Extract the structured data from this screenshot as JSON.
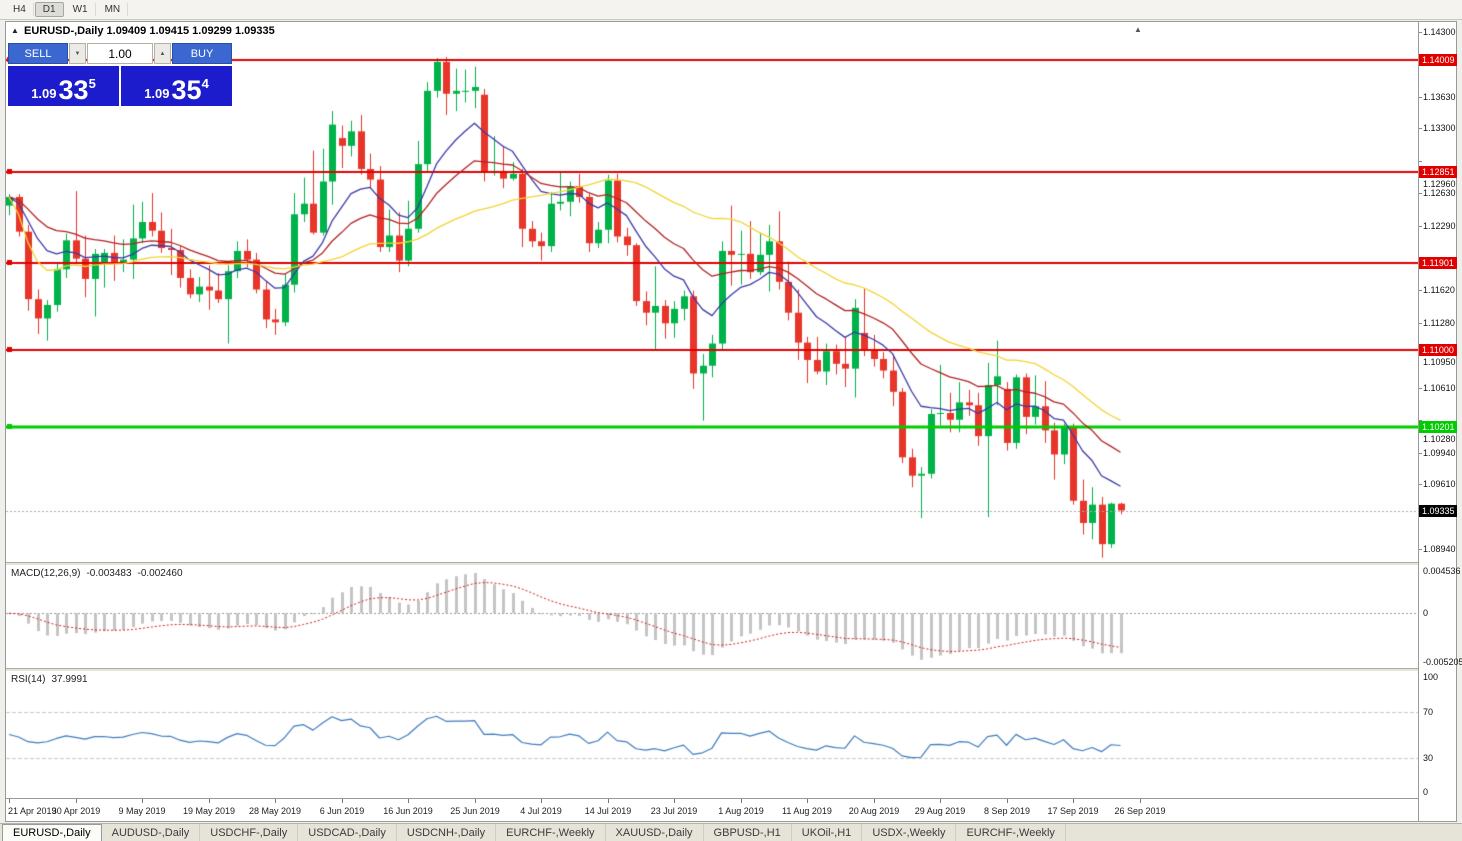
{
  "toolbar": {
    "timeframes": [
      {
        "label": "H4",
        "active": false
      },
      {
        "label": "D1",
        "active": true
      },
      {
        "label": "W1",
        "active": false
      },
      {
        "label": "MN",
        "active": false
      }
    ]
  },
  "chart": {
    "title": "EURUSD-,Daily 1.09409 1.09415 1.09299 1.09335",
    "panel_toggle_icon": "▲",
    "shift_marker_icon": "▲"
  },
  "trade_panel": {
    "sell_label": "SELL",
    "buy_label": "BUY",
    "volume": "1.00",
    "decrease_icon": "▼",
    "increase_icon": "▲",
    "sell_price": {
      "prefix": "1.09",
      "big": "33",
      "sup": "5"
    },
    "buy_price": {
      "prefix": "1.09",
      "big": "35",
      "sup": "4"
    }
  },
  "price_axis": {
    "labels": [
      {
        "text": "1.14300",
        "price": 1.143
      },
      {
        "text": "1.13630",
        "price": 1.1363
      },
      {
        "text": "1.13300",
        "price": 1.133
      },
      {
        "text": "1.12960",
        "price": 1.1296
      },
      {
        "text": "1.12630",
        "price": 1.1263
      },
      {
        "text": "1.12290",
        "price": 1.1229
      },
      {
        "text": "1.11620",
        "price": 1.1162
      },
      {
        "text": "1.11280",
        "price": 1.1128
      },
      {
        "text": "1.10950",
        "price": 1.1095
      },
      {
        "text": "1.10610",
        "price": 1.1061
      },
      {
        "text": "1.10280",
        "price": 1.1028
      },
      {
        "text": "1.09940",
        "price": 1.0994
      },
      {
        "text": "1.09610",
        "price": 1.0961
      },
      {
        "text": "1.08940",
        "price": 1.0894
      }
    ],
    "badges": [
      {
        "text": "1.14009",
        "price": 1.14009,
        "bg": "#e00000"
      },
      {
        "text": "1.12851",
        "price": 1.12851,
        "bg": "#e00000"
      },
      {
        "text": "1.11901",
        "price": 1.11901,
        "bg": "#e00000"
      },
      {
        "text": "1.11000",
        "price": 1.11,
        "bg": "#e00000"
      },
      {
        "text": "1.10201",
        "price": 1.10201,
        "bg": "#00cc00"
      },
      {
        "text": "1.09335",
        "price": 1.09335,
        "bg": "#000000"
      }
    ]
  },
  "indicators": {
    "macd": {
      "name": "MACD(12,26,9)",
      "value1": "-0.003483",
      "value2": "-0.002460",
      "axis": [
        {
          "text": "0.004536",
          "value": 0.004536
        },
        {
          "text": "0",
          "value": 0
        },
        {
          "text": "-0.005205",
          "value": -0.005205
        }
      ],
      "range": {
        "max": 0.004536,
        "min": -0.005205
      },
      "fast": 12,
      "slow": 26,
      "signal": 9,
      "histogram_color": "#c4c4c4",
      "signal_color": "#d02020",
      "zero_line_color": "#999999"
    },
    "rsi": {
      "name": "RSI(14)",
      "value": "37.9991",
      "period": 14,
      "axis": [
        {
          "text": "100",
          "value": 100
        },
        {
          "text": "70",
          "value": 70
        },
        {
          "text": "30",
          "value": 30
        },
        {
          "text": "0",
          "value": 0
        }
      ],
      "levels": [
        70,
        30
      ],
      "range": {
        "max": 100,
        "min": 0
      },
      "line_color": "#3e7bbe",
      "level_color": "#c8c8c8"
    }
  },
  "tabs": {
    "active_index": 0,
    "items": [
      "EURUSD-,Daily",
      "AUDUSD-,Daily",
      "USDCHF-,Daily",
      "USDCAD-,Daily",
      "USDCNH-,Daily",
      "EURCHF-,Weekly",
      "XAUUSD-,Daily",
      "GBPUSD-,H1",
      "UKOil-,H1",
      "USDX-,Weekly",
      "EURCHF-,Weekly"
    ]
  },
  "chart_data": {
    "type": "candlestick",
    "symbol": "EURUSD-",
    "timeframe": "Daily",
    "current": {
      "open": "1.09409",
      "high": "1.09415",
      "low": "1.09299",
      "close": "1.09335"
    },
    "y_range": {
      "max": 1.143,
      "min": 1.0894
    },
    "bid": 1.09335,
    "colors": {
      "bull": "#00b24a",
      "bear": "#e8352a",
      "bid_line": "#aaaaaa"
    },
    "h_lines": [
      {
        "price": 1.14009,
        "color": "#e00000",
        "width": 2
      },
      {
        "price": 1.12851,
        "color": "#e00000",
        "width": 2
      },
      {
        "price": 1.11901,
        "color": "#e00000",
        "width": 2
      },
      {
        "price": 1.11,
        "color": "#e00000",
        "width": 2
      },
      {
        "price": 1.10201,
        "color": "#00cc00",
        "width": 3
      }
    ],
    "overlays": [
      {
        "name": "ma-fast",
        "type": "ema",
        "period": 10,
        "color": "#3a3aa8"
      },
      {
        "name": "ma-mid",
        "type": "ema",
        "period": 21,
        "color": "#b22222"
      },
      {
        "name": "ma-slow",
        "type": "sma",
        "period": 34,
        "color": "#f2d435"
      }
    ],
    "x_labels": [
      "21 Apr 2019",
      "30 Apr 2019",
      "9 May 2019",
      "19 May 2019",
      "28 May 2019",
      "6 Jun 2019",
      "16 Jun 2019",
      "25 Jun 2019",
      "4 Jul 2019",
      "14 Jul 2019",
      "23 Jul 2019",
      "1 Aug 2019",
      "11 Aug 2019",
      "20 Aug 2019",
      "29 Aug 2019",
      "8 Sep 2019",
      "17 Sep 2019",
      "26 Sep 2019"
    ],
    "ohlc": [
      [
        1.125,
        1.1262,
        1.124,
        1.1259
      ],
      [
        1.1259,
        1.1262,
        1.1218,
        1.1223
      ],
      [
        1.1223,
        1.123,
        1.1141,
        1.1153
      ],
      [
        1.1153,
        1.1163,
        1.1117,
        1.1133
      ],
      [
        1.1133,
        1.1152,
        1.111,
        1.1147
      ],
      [
        1.1147,
        1.119,
        1.114,
        1.1184
      ],
      [
        1.1184,
        1.1221,
        1.1175,
        1.1214
      ],
      [
        1.1214,
        1.1265,
        1.119,
        1.1195
      ],
      [
        1.1195,
        1.1219,
        1.1155,
        1.1174
      ],
      [
        1.1174,
        1.1205,
        1.1135,
        1.12
      ],
      [
        1.119,
        1.1205,
        1.1165,
        1.1201
      ],
      [
        1.1201,
        1.1219,
        1.1172,
        1.119
      ],
      [
        1.119,
        1.1215,
        1.1181,
        1.1194
      ],
      [
        1.1194,
        1.1251,
        1.1174,
        1.1216
      ],
      [
        1.1216,
        1.1254,
        1.1211,
        1.1233
      ],
      [
        1.1233,
        1.1263,
        1.1218,
        1.1224
      ],
      [
        1.1224,
        1.1243,
        1.1201,
        1.1206
      ],
      [
        1.1206,
        1.1226,
        1.1178,
        1.1204
      ],
      [
        1.1204,
        1.1208,
        1.1165,
        1.1175
      ],
      [
        1.1175,
        1.1184,
        1.1154,
        1.1158
      ],
      [
        1.1158,
        1.1176,
        1.115,
        1.1166
      ],
      [
        1.1166,
        1.1188,
        1.1142,
        1.1162
      ],
      [
        1.1162,
        1.118,
        1.1149,
        1.1153
      ],
      [
        1.1153,
        1.1188,
        1.1107,
        1.1182
      ],
      [
        1.1182,
        1.1213,
        1.1175,
        1.1203
      ],
      [
        1.1203,
        1.1215,
        1.1186,
        1.1194
      ],
      [
        1.1194,
        1.1201,
        1.1159,
        1.1163
      ],
      [
        1.1163,
        1.1172,
        1.1123,
        1.1132
      ],
      [
        1.1132,
        1.1143,
        1.1116,
        1.1129
      ],
      [
        1.1129,
        1.1179,
        1.1125,
        1.1168
      ],
      [
        1.1168,
        1.1263,
        1.116,
        1.1241
      ],
      [
        1.1241,
        1.1279,
        1.1233,
        1.1252
      ],
      [
        1.1252,
        1.1307,
        1.122,
        1.1222
      ],
      [
        1.1222,
        1.1309,
        1.1219,
        1.1275
      ],
      [
        1.1275,
        1.1348,
        1.1251,
        1.1334
      ],
      [
        1.132,
        1.1333,
        1.1289,
        1.1312
      ],
      [
        1.1312,
        1.1338,
        1.1301,
        1.1327
      ],
      [
        1.1327,
        1.1344,
        1.1282,
        1.1288
      ],
      [
        1.1288,
        1.1304,
        1.1268,
        1.1277
      ],
      [
        1.1277,
        1.1291,
        1.1202,
        1.1207
      ],
      [
        1.1207,
        1.1246,
        1.1202,
        1.1219
      ],
      [
        1.1219,
        1.1243,
        1.1181,
        1.1193
      ],
      [
        1.1193,
        1.1255,
        1.1187,
        1.1226
      ],
      [
        1.1226,
        1.1317,
        1.1222,
        1.1293
      ],
      [
        1.1293,
        1.1378,
        1.1285,
        1.1369
      ],
      [
        1.1369,
        1.1403,
        1.1362,
        1.1399
      ],
      [
        1.1399,
        1.1404,
        1.1344,
        1.1366
      ],
      [
        1.1366,
        1.1392,
        1.1348,
        1.1369
      ],
      [
        1.1369,
        1.1391,
        1.1357,
        1.1369
      ],
      [
        1.1369,
        1.1394,
        1.1351,
        1.1373
      ],
      [
        1.1365,
        1.1371,
        1.1275,
        1.1285
      ],
      [
        1.1285,
        1.1322,
        1.1281,
        1.1286
      ],
      [
        1.1286,
        1.1312,
        1.1268,
        1.1278
      ],
      [
        1.1278,
        1.1295,
        1.1276,
        1.1283
      ],
      [
        1.1283,
        1.1288,
        1.1207,
        1.1226
      ],
      [
        1.1226,
        1.1234,
        1.1207,
        1.1213
      ],
      [
        1.1213,
        1.1222,
        1.1193,
        1.1208
      ],
      [
        1.1208,
        1.1264,
        1.1202,
        1.1252
      ],
      [
        1.1252,
        1.1286,
        1.1245,
        1.1254
      ],
      [
        1.1254,
        1.1275,
        1.1239,
        1.127
      ],
      [
        1.127,
        1.1283,
        1.1253,
        1.1259
      ],
      [
        1.1259,
        1.1262,
        1.1202,
        1.1211
      ],
      [
        1.1211,
        1.1233,
        1.1206,
        1.1225
      ],
      [
        1.1225,
        1.1282,
        1.1211,
        1.1276
      ],
      [
        1.1276,
        1.1283,
        1.1212,
        1.1218
      ],
      [
        1.1218,
        1.1227,
        1.1198,
        1.1209
      ],
      [
        1.1209,
        1.1211,
        1.1146,
        1.1151
      ],
      [
        1.1151,
        1.1161,
        1.1126,
        1.1139
      ],
      [
        1.1139,
        1.1187,
        1.1101,
        1.1146
      ],
      [
        1.1146,
        1.1152,
        1.1112,
        1.1128
      ],
      [
        1.1128,
        1.1151,
        1.1113,
        1.1143
      ],
      [
        1.1143,
        1.1162,
        1.1131,
        1.1156
      ],
      [
        1.1156,
        1.1162,
        1.106,
        1.1076
      ],
      [
        1.1076,
        1.1096,
        1.1027,
        1.1084
      ],
      [
        1.1084,
        1.1116,
        1.1072,
        1.1107
      ],
      [
        1.1107,
        1.1213,
        1.1101,
        1.1203
      ],
      [
        1.1203,
        1.125,
        1.1167,
        1.1199
      ],
      [
        1.1199,
        1.1224,
        1.1168,
        1.12
      ],
      [
        1.12,
        1.1234,
        1.1174,
        1.1181
      ],
      [
        1.1181,
        1.1222,
        1.1178,
        1.1199
      ],
      [
        1.1199,
        1.123,
        1.1161,
        1.1213
      ],
      [
        1.1213,
        1.1244,
        1.1163,
        1.1171
      ],
      [
        1.1171,
        1.1192,
        1.1131,
        1.1139
      ],
      [
        1.1139,
        1.1163,
        1.109,
        1.1108
      ],
      [
        1.1108,
        1.1114,
        1.1066,
        1.109
      ],
      [
        1.109,
        1.1114,
        1.1075,
        1.1078
      ],
      [
        1.1078,
        1.1107,
        1.1064,
        1.1099
      ],
      [
        1.1099,
        1.1106,
        1.1075,
        1.1086
      ],
      [
        1.1086,
        1.1113,
        1.1062,
        1.1081
      ],
      [
        1.1081,
        1.1153,
        1.1051,
        1.1144
      ],
      [
        1.1118,
        1.1164,
        1.1094,
        1.1101
      ],
      [
        1.1101,
        1.1116,
        1.1083,
        1.1091
      ],
      [
        1.1091,
        1.1098,
        1.1071,
        1.1079
      ],
      [
        1.1079,
        1.1094,
        1.1042,
        1.1057
      ],
      [
        1.1057,
        1.1061,
        1.0983,
        1.0989
      ],
      [
        1.0989,
        1.0998,
        1.0958,
        1.097
      ],
      [
        1.097,
        1.0979,
        1.0926,
        1.0972
      ],
      [
        1.0972,
        1.1039,
        1.0967,
        1.1034
      ],
      [
        1.1034,
        1.1085,
        1.1022,
        1.1035
      ],
      [
        1.1035,
        1.1056,
        1.1015,
        1.1028
      ],
      [
        1.1028,
        1.1067,
        1.1015,
        1.1046
      ],
      [
        1.1046,
        1.1059,
        1.1032,
        1.1043
      ],
      [
        1.1043,
        1.1056,
        1.1001,
        1.1011
      ],
      [
        1.1011,
        1.1087,
        1.0927,
        1.1064
      ],
      [
        1.1064,
        1.111,
        1.1043,
        1.1073
      ],
      [
        1.106,
        1.1067,
        1.0996,
        1.1004
      ],
      [
        1.1004,
        1.1075,
        1.0998,
        1.1072
      ],
      [
        1.1072,
        1.1076,
        1.1013,
        1.1031
      ],
      [
        1.1031,
        1.1074,
        1.1023,
        1.1042
      ],
      [
        1.1042,
        1.1068,
        1.1004,
        1.1017
      ],
      [
        1.1017,
        1.1025,
        1.0966,
        1.0992
      ],
      [
        1.0992,
        1.1024,
        1.0982,
        1.1021
      ],
      [
        1.1021,
        1.1024,
        1.094,
        1.0944
      ],
      [
        1.0944,
        1.0966,
        1.0909,
        1.0921
      ],
      [
        1.0921,
        1.0958,
        1.0904,
        1.094
      ],
      [
        1.094,
        1.0948,
        1.0885,
        1.0899
      ],
      [
        1.0899,
        1.0942,
        1.0895,
        1.0941
      ],
      [
        1.0941,
        1.0942,
        1.093,
        1.0934
      ]
    ]
  }
}
